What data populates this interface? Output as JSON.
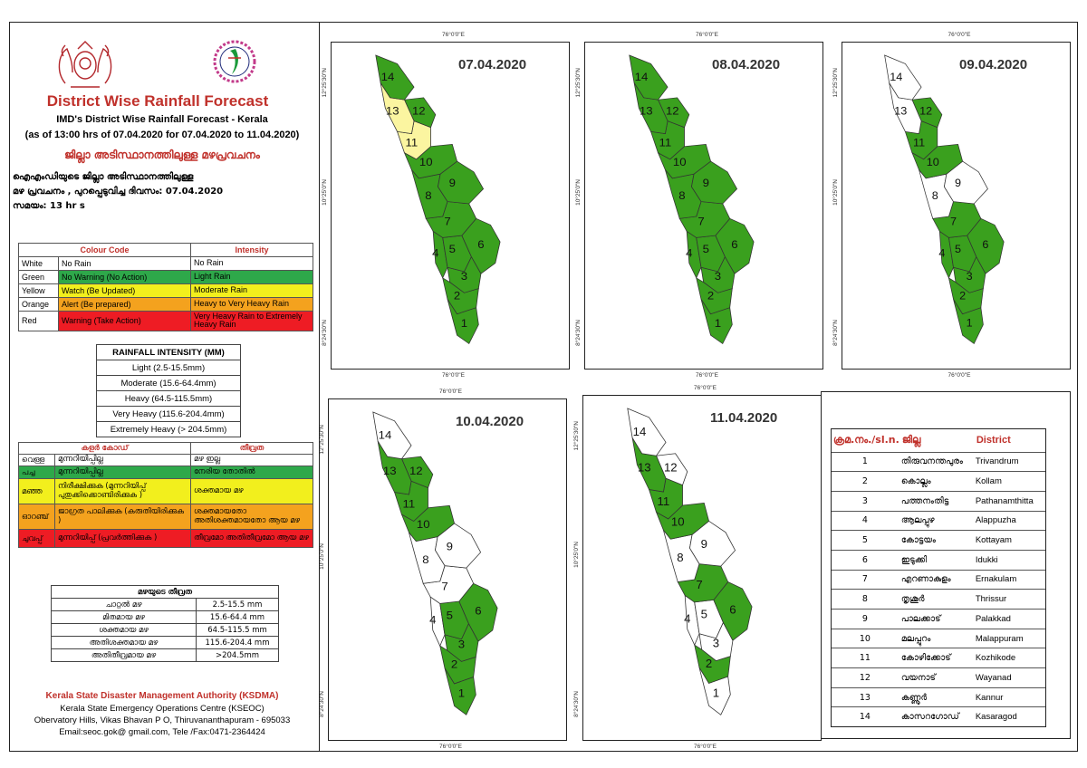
{
  "header": {
    "title": "District Wise Rainfall Forecast",
    "line1": "IMD's District Wise Rainfall Forecast - Kerala",
    "line2": "(as of 13:00 hrs of 07.04.2020  for 07.04.2020  to 11.04.2020)",
    "mal_title": "ജില്ലാ അടിസ്ഥാനത്തിലുള്ള മഴപ്രവചനം",
    "mal_line1": "ഐഎംഡിയുടെ ജില്ലാ     അടിസ്ഥാനത്തിലുള്ള",
    "mal_line2": "മഴ പ്രവചനം , പുറപ്പെടുവിച്ച     ദിവസം: 07.04.2020",
    "mal_line3": "സമയം:  13  hr s"
  },
  "colour_code": {
    "head_code": "Colour Code",
    "head_intensity": "Intensity",
    "rows": [
      {
        "colour": "White",
        "code": "No Rain",
        "intensity": "No Rain",
        "bg": "#ffffff"
      },
      {
        "colour": "Green",
        "code": "No Warning (No Action)",
        "intensity": "Light Rain",
        "bg": "#2ea84a"
      },
      {
        "colour": "Yellow",
        "code": "Watch (Be Updated)",
        "intensity": "Moderate Rain",
        "bg": "#f2ef1d"
      },
      {
        "colour": "Orange",
        "code": "Alert (Be prepared)",
        "intensity": "Heavy to Very Heavy Rain",
        "bg": "#f4a21e"
      },
      {
        "colour": "Red",
        "code": "Warning (Take Action)",
        "intensity": "Very Heavy Rain to Extremely Heavy Rain",
        "bg": "#ee1c24"
      }
    ]
  },
  "rainfall_intensity": {
    "title": "RAINFALL INTENSITY (MM)",
    "rows": [
      "Light (2.5-15.5mm)",
      "Moderate (15.6-64.4mm)",
      "Heavy (64.5-115.5mm)",
      "Very Heavy (115.6-204.4mm)",
      "Extremely Heavy (> 204.5mm)"
    ]
  },
  "mal_colour_code": {
    "head_code": "കളർ കോഡ്",
    "head_intensity": "തീവ്രത",
    "rows": [
      {
        "colour": "വെള്ള",
        "code": "മുന്നറിയിപ്പില്ല",
        "intensity": "മഴ ഇല്ല",
        "bg": "#ffffff"
      },
      {
        "colour": "പച്ച",
        "code": "മുന്നറിയിപ്പില്ല",
        "intensity": "നേരിയ തോതിൽ",
        "bg": "#2ea84a"
      },
      {
        "colour": "മഞ്ഞ",
        "code": "നിരീക്ഷിക്കുക (മുന്നറിയിപ്പ് പുതുക്കിക്കൊണ്ടിരിക്കുക )",
        "intensity": "ശക്തമായ മഴ",
        "bg": "#f2ef1d"
      },
      {
        "colour": "ഓറഞ്ച്",
        "code": "ജാഗ്രത പാലിക്കുക (കരുതിയിരിക്കുക )",
        "intensity": "ശക്തമായതോ അതിശക്തമായതോ ആയ മഴ",
        "bg": "#f4a21e"
      },
      {
        "colour": "ചുവപ്പ്",
        "code": "മുന്നറിയിപ്പ് (പ്രവർത്തിക്കുക )",
        "intensity": "തീവ്രമോ അതിതീവ്രമോ ആയ മഴ",
        "bg": "#ee1c24"
      }
    ]
  },
  "mal_rainfall_intensity": {
    "title": "മഴയുടെ തീവ്രത",
    "rows": [
      {
        "label": "ചാറ്റൽ മഴ",
        "range": "2.5-15.5 mm"
      },
      {
        "label": "മിതമായ മഴ",
        "range": "15.6-64.4 mm"
      },
      {
        "label": "ശക്തമായ മഴ",
        "range": "64.5-115.5 mm"
      },
      {
        "label": "അതിശക്തമായ മഴ",
        "range": "115.6-204.4 mm"
      },
      {
        "label": "അതിതീവ്രമായ മഴ",
        "range": ">204.5mm"
      }
    ]
  },
  "footer": {
    "org": "Kerala State Disaster Management Authority (KSDMA)",
    "centre": "Kerala State Emergency Operations Centre (KSEOC)",
    "address": "Obervatory Hills, Vikas Bhavan P O, Thiruvananthapuram - 695033",
    "contact": "Email:seoc.gok@ gmail.com, Tele /Fax:0471-2364424"
  },
  "map_labels": {
    "lon": "76°0'0\"E",
    "lat_n": "12°25'30\"N",
    "lat_m": "10°25'0\"N",
    "lat_s": "8°24'30\"N"
  },
  "maps": [
    {
      "date": "07.04.2020",
      "colors": {
        "1": "green",
        "2": "green",
        "3": "green",
        "4": "green",
        "5": "green",
        "6": "green",
        "7": "green",
        "8": "green",
        "9": "green",
        "10": "green",
        "11": "yellow",
        "12": "green",
        "13": "yellow",
        "14": "green"
      }
    },
    {
      "date": "08.04.2020",
      "colors": {
        "1": "green",
        "2": "green",
        "3": "green",
        "4": "green",
        "5": "green",
        "6": "green",
        "7": "green",
        "8": "green",
        "9": "green",
        "10": "green",
        "11": "green",
        "12": "green",
        "13": "green",
        "14": "green"
      }
    },
    {
      "date": "09.04.2020",
      "colors": {
        "1": "green",
        "2": "green",
        "3": "green",
        "4": "green",
        "5": "green",
        "6": "green",
        "7": "green",
        "8": "white",
        "9": "white",
        "10": "green",
        "11": "green",
        "12": "green",
        "13": "white",
        "14": "white"
      }
    },
    {
      "date": "10.04.2020",
      "colors": {
        "1": "green",
        "2": "green",
        "3": "green",
        "4": "white",
        "5": "green",
        "6": "green",
        "7": "white",
        "8": "white",
        "9": "white",
        "10": "green",
        "11": "green",
        "12": "green",
        "13": "green",
        "14": "white"
      }
    },
    {
      "date": "11.04.2020",
      "colors": {
        "1": "white",
        "2": "green",
        "3": "white",
        "4": "white",
        "5": "white",
        "6": "green",
        "7": "green",
        "8": "white",
        "9": "white",
        "10": "green",
        "11": "green",
        "12": "white",
        "13": "green",
        "14": "white"
      }
    }
  ],
  "colors": {
    "green": "#3aa01e",
    "yellow": "#fbf5a0",
    "white": "#ffffff",
    "accent": "#c0312b"
  },
  "districts": {
    "headers": [
      "ക്രമ.നം./sl.n.",
      "ജില്ല",
      "District"
    ],
    "rows": [
      [
        "1",
        "തിരുവനന്തപുരം",
        "Trivandrum"
      ],
      [
        "2",
        "കൊല്ലം",
        "Kollam"
      ],
      [
        "3",
        "പത്തനംതിട്ട",
        "Pathanamthitta"
      ],
      [
        "4",
        "ആലപ്പുഴ",
        "Alappuzha"
      ],
      [
        "5",
        "കോട്ടയം",
        "Kottayam"
      ],
      [
        "6",
        "ഇടുക്കി",
        "Idukki"
      ],
      [
        "7",
        "എറണാകുളം",
        "Ernakulam"
      ],
      [
        "8",
        "തൃശൂർ",
        "Thrissur"
      ],
      [
        "9",
        "പാലക്കാട്",
        "Palakkad"
      ],
      [
        "10",
        "മലപ്പുറം",
        "Malappuram"
      ],
      [
        "11",
        "കോഴിക്കോട്",
        "Kozhikode"
      ],
      [
        "12",
        "വയനാട്",
        "Wayanad"
      ],
      [
        "13",
        "കണ്ണൂർ",
        "Kannur"
      ],
      [
        "14",
        "കാസറഗോഡ്",
        "Kasaragod"
      ]
    ]
  }
}
